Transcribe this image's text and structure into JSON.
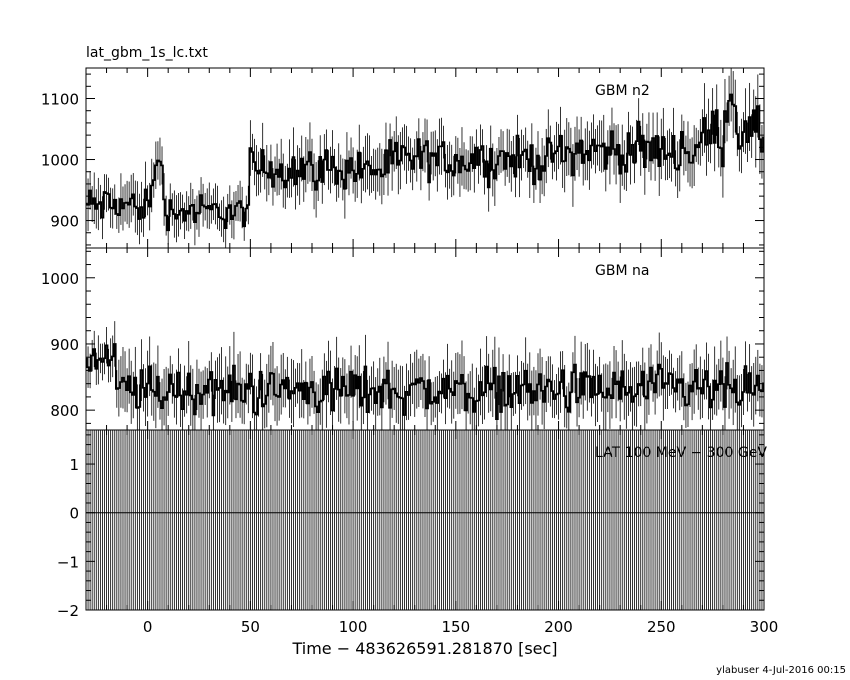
{
  "title": "lat_gbm_1s_lc.txt",
  "xlabel": "Time − 483626591.281870 [sec]",
  "footer": {
    "user": "ylabuser",
    "date": "4-Jul-2016 00:15"
  },
  "chart_data": [
    {
      "type": "line",
      "series": [
        {
          "name": "GBM n2"
        }
      ],
      "panel_label": "GBM n2",
      "xlim": [
        -30,
        300
      ],
      "ylim": [
        855,
        1150
      ],
      "yticks": [
        900,
        1000,
        1100
      ],
      "ytick_labels": [
        "900",
        "1000",
        "1100"
      ],
      "x_start": -30,
      "x_end": 300,
      "dx": 1,
      "segments": [
        {
          "x0": -30,
          "x1": 10,
          "level": 925,
          "spread": 35
        },
        {
          "x0": 10,
          "x1": 50,
          "level": 915,
          "spread": 30
        },
        {
          "x0": 50,
          "x1": 120,
          "level": 985,
          "spread": 38
        },
        {
          "x0": 120,
          "x1": 200,
          "level": 1000,
          "spread": 38
        },
        {
          "x0": 200,
          "x1": 270,
          "level": 1015,
          "spread": 40
        },
        {
          "x0": 270,
          "x1": 300,
          "level": 1040,
          "spread": 45
        }
      ],
      "notable_peaks": [
        {
          "x": 5,
          "y": 1025
        },
        {
          "x": 284,
          "y": 1135
        }
      ]
    },
    {
      "type": "line",
      "series": [
        {
          "name": "GBM na"
        }
      ],
      "panel_label": "GBM na",
      "xlim": [
        -30,
        300
      ],
      "ylim": [
        770,
        1045
      ],
      "yticks": [
        800,
        900,
        1000
      ],
      "ytick_labels": [
        "800",
        "900",
        "1000"
      ],
      "x_start": -30,
      "x_end": 300,
      "dx": 1,
      "segments": [
        {
          "x0": -30,
          "x1": -15,
          "level": 875,
          "spread": 30
        },
        {
          "x0": -15,
          "x1": 300,
          "level": 830,
          "spread": 40
        }
      ]
    },
    {
      "type": "line",
      "series": [
        {
          "name": "LAT 100 MeV − 300 GeV"
        }
      ],
      "panel_label": "LAT 100 MeV − 300 GeV",
      "xlim": [
        -30,
        300
      ],
      "ylim": [
        -2,
        1.7
      ],
      "yticks": [
        -2,
        -1,
        0,
        1
      ],
      "ytick_labels": [
        "−2",
        "−1",
        "0",
        "1"
      ],
      "value": 0,
      "error": 2
    }
  ],
  "xaxis": {
    "ticks": [
      0,
      50,
      100,
      150,
      200,
      250,
      300
    ],
    "tick_labels": [
      "0",
      "50",
      "100",
      "150",
      "200",
      "250",
      "300"
    ]
  }
}
